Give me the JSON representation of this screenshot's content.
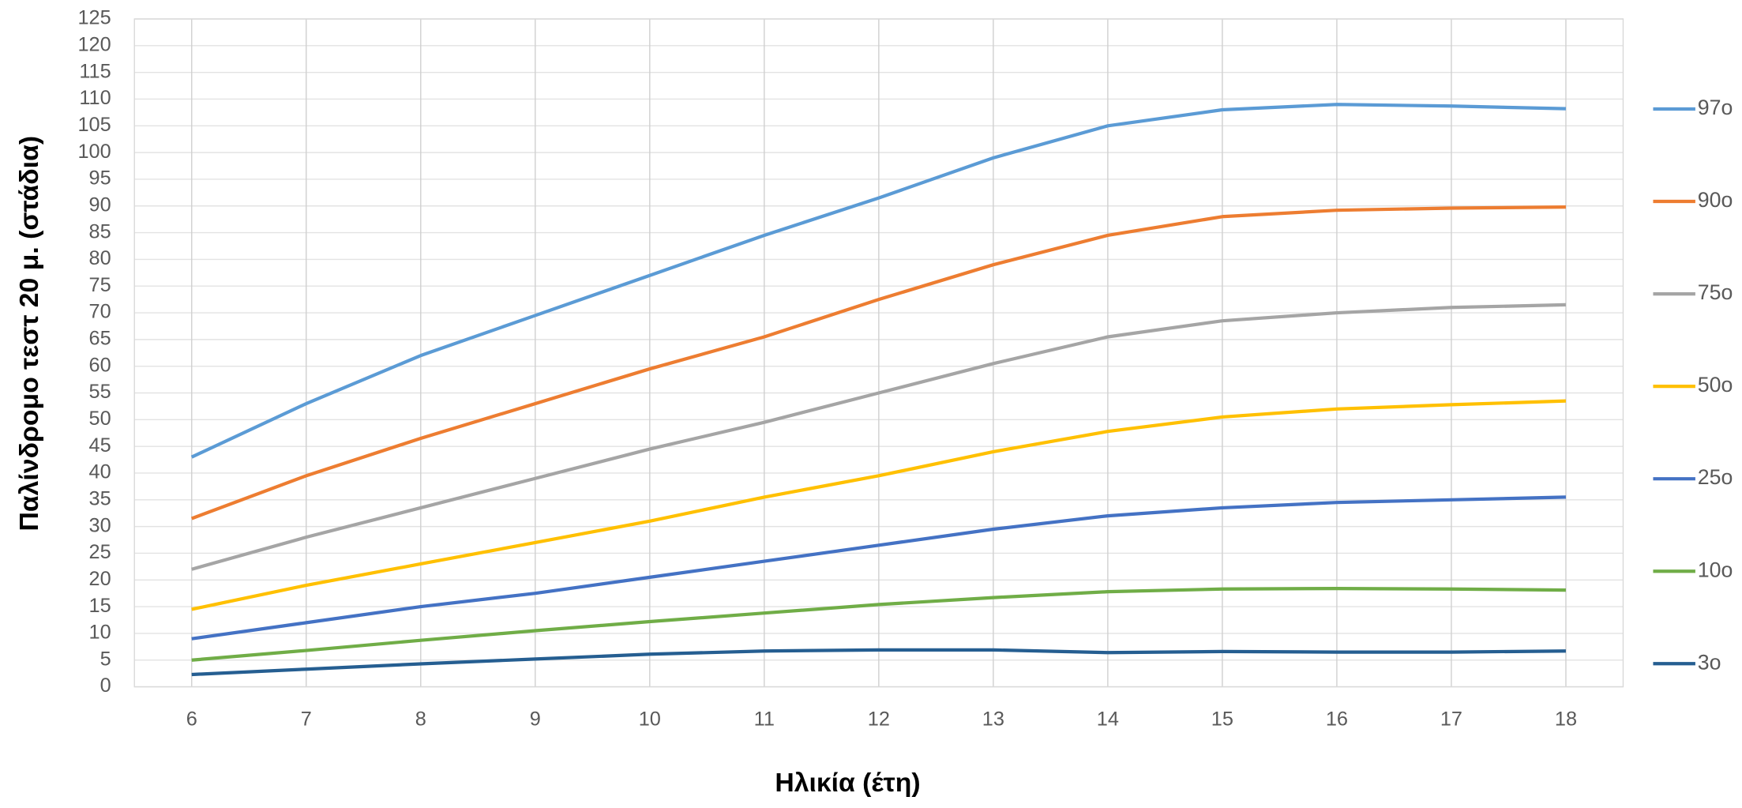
{
  "chart_data": {
    "type": "line",
    "y_label": "Παλίνδρομο τεστ 20 μ. (στάδια)",
    "x_label": "Ηλικία (έτη)",
    "x": [
      6,
      7,
      8,
      9,
      10,
      11,
      12,
      13,
      14,
      15,
      16,
      17,
      18
    ],
    "xlim": [
      5.5,
      18.5
    ],
    "xticks": [
      6,
      7,
      8,
      9,
      10,
      11,
      12,
      13,
      14,
      15,
      16,
      17,
      18
    ],
    "ylim": [
      0,
      125
    ],
    "yticks": [
      0,
      5,
      10,
      15,
      20,
      25,
      30,
      35,
      40,
      45,
      50,
      55,
      60,
      65,
      70,
      75,
      80,
      85,
      90,
      95,
      100,
      105,
      110,
      115,
      120,
      125
    ],
    "grid": true,
    "legend": "right",
    "series": [
      {
        "name": "97o",
        "color": "#5b9bd5",
        "values": [
          43,
          53,
          62,
          69.5,
          77,
          84.5,
          91.5,
          99,
          105,
          108,
          109,
          108.7,
          108.2
        ]
      },
      {
        "name": "90o",
        "color": "#ed7d31",
        "values": [
          31.5,
          39.5,
          46.5,
          53,
          59.5,
          65.5,
          72.5,
          79,
          84.5,
          88,
          89.2,
          89.6,
          89.8
        ]
      },
      {
        "name": "75o",
        "color": "#a5a5a5",
        "values": [
          22,
          28,
          33.5,
          39,
          44.5,
          49.5,
          55,
          60.5,
          65.5,
          68.5,
          70,
          71,
          71.5
        ]
      },
      {
        "name": "50o",
        "color": "#ffc000",
        "values": [
          14.5,
          19,
          23,
          27,
          31,
          35.5,
          39.5,
          44,
          47.8,
          50.5,
          52,
          52.8,
          53.5
        ]
      },
      {
        "name": "25o",
        "color": "#4472c4",
        "values": [
          9,
          12,
          15,
          17.5,
          20.5,
          23.5,
          26.5,
          29.5,
          32,
          33.5,
          34.5,
          35,
          35.5
        ]
      },
      {
        "name": "10o",
        "color": "#70ad47",
        "values": [
          5,
          6.8,
          8.7,
          10.5,
          12.2,
          13.8,
          15.4,
          16.7,
          17.8,
          18.3,
          18.4,
          18.3,
          18.1
        ]
      },
      {
        "name": "3o",
        "color": "#255e91",
        "values": [
          2.3,
          3.3,
          4.3,
          5.2,
          6.1,
          6.7,
          6.9,
          6.9,
          6.4,
          6.6,
          6.5,
          6.5,
          6.7
        ]
      }
    ]
  }
}
